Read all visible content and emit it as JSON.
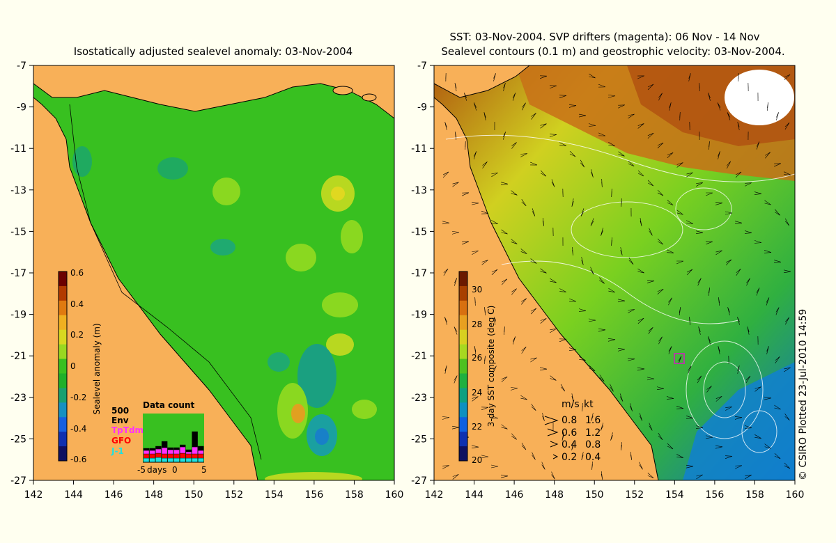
{
  "left_panel": {
    "title": "Isostatically adjusted sealevel anomaly: 03-Nov-2004",
    "colorbar_label": "Sealevel anomaly (m)",
    "colorbar_ticks": [
      "0.6",
      "0.4",
      "0.2",
      "0",
      "-0.2",
      "-0.4",
      "-0.6"
    ],
    "colorbar_colors": [
      "#6b0000",
      "#b23a00",
      "#e07a10",
      "#f0b020",
      "#d8d820",
      "#9ad820",
      "#39c020",
      "#1fb02a",
      "#1aa070",
      "#1890c0",
      "#1860e0",
      "#1030b0",
      "#101060"
    ],
    "data_count": {
      "max_label": "500",
      "title": "Data count",
      "legend": [
        {
          "name": "Env",
          "color": "#000000"
        },
        {
          "name": "TpTdm",
          "color": "#ff30ff"
        },
        {
          "name": "GFO",
          "color": "#ff0000"
        },
        {
          "name": "J-1",
          "color": "#20e0e0"
        }
      ],
      "xlabel_days": "days",
      "x_ticks": [
        "-5",
        "0",
        "5"
      ]
    }
  },
  "right_panel": {
    "title_line1": "SST: 03-Nov-2004. SVP drifters (magenta): 06 Nov - 14 Nov",
    "title_line2": "Sealevel contours (0.1 m) and geostrophic velocity: 03-Nov-2004.",
    "colorbar_label": "3-day SST composite (deg C)",
    "colorbar_ticks": [
      "30",
      "28",
      "26",
      "24",
      "22",
      "20"
    ],
    "colorbar_colors": [
      "#6b1a00",
      "#a84000",
      "#d87010",
      "#e8a020",
      "#d8d020",
      "#a8d820",
      "#50c020",
      "#20b040",
      "#10a080",
      "#1090c0",
      "#1060e0",
      "#1030b0",
      "#101060"
    ],
    "velocity_legend": {
      "units_ms": "m/s",
      "units_kt": "kt",
      "rows": [
        {
          "ms": "0.8",
          "kt": "1.6"
        },
        {
          "ms": "0.6",
          "kt": "1.2"
        },
        {
          "ms": "0.4",
          "kt": "0.8"
        },
        {
          "ms": "0.2",
          "kt": "0.4"
        }
      ]
    },
    "credit": "© CSIRO Plotted 23-Jul-2010 14:59"
  },
  "axes": {
    "lat_ticks": [
      "-7",
      "-9",
      "-11",
      "-13",
      "-15",
      "-17",
      "-19",
      "-21",
      "-23",
      "-25",
      "-27"
    ],
    "lon_ticks": [
      "142",
      "144",
      "146",
      "148",
      "150",
      "152",
      "154",
      "156",
      "158",
      "160"
    ]
  },
  "colors": {
    "land": "#f8b058",
    "ocean_left": "#38c020",
    "ocean_right": "#7ad020",
    "background": "#fffff0"
  }
}
